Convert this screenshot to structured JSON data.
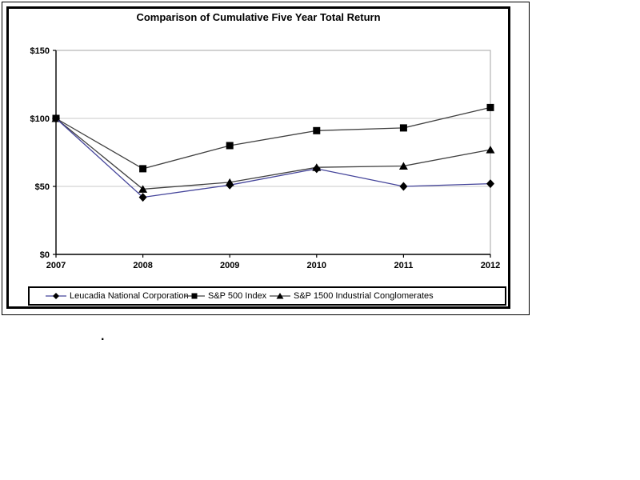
{
  "chart_data": {
    "type": "line",
    "title": "Comparison of Cumulative Five Year Total Return",
    "x": [
      2007,
      2008,
      2009,
      2010,
      2011,
      2012
    ],
    "x_labels": [
      "2007",
      "2008",
      "2009",
      "2010",
      "2011",
      "2012"
    ],
    "xlabel": "",
    "ylabel": "",
    "y_axis": {
      "min": 0,
      "max": 150,
      "tick_values": [
        0,
        50,
        100,
        150
      ],
      "tick_labels": [
        "$0",
        "$50",
        "$100",
        "$150"
      ],
      "gridline_values": [
        50,
        100
      ]
    },
    "grid": "horizontal-only",
    "legend_position": "bottom",
    "series": [
      {
        "name": "Leucadia National Corporation",
        "marker": "diamond",
        "line_color": "#44449a",
        "marker_color": "#000000",
        "values": [
          100,
          42,
          51,
          63,
          50,
          52
        ]
      },
      {
        "name": "S&P 500 Index",
        "marker": "square",
        "line_color": "#404040",
        "marker_color": "#000000",
        "values": [
          100,
          63,
          80,
          91,
          93,
          108
        ]
      },
      {
        "name": "S&P 1500 Industrial Conglomerates",
        "marker": "triangle",
        "line_color": "#404040",
        "marker_color": "#000000",
        "values": [
          100,
          48,
          53,
          64,
          65,
          77
        ]
      }
    ],
    "draw_order": [
      1,
      2,
      0
    ],
    "colors": {
      "gridline": "#c8c8c8",
      "plot_border": "#a6a6a6",
      "axis": "#000000",
      "text": "#000000"
    }
  },
  "stray_mark": "."
}
